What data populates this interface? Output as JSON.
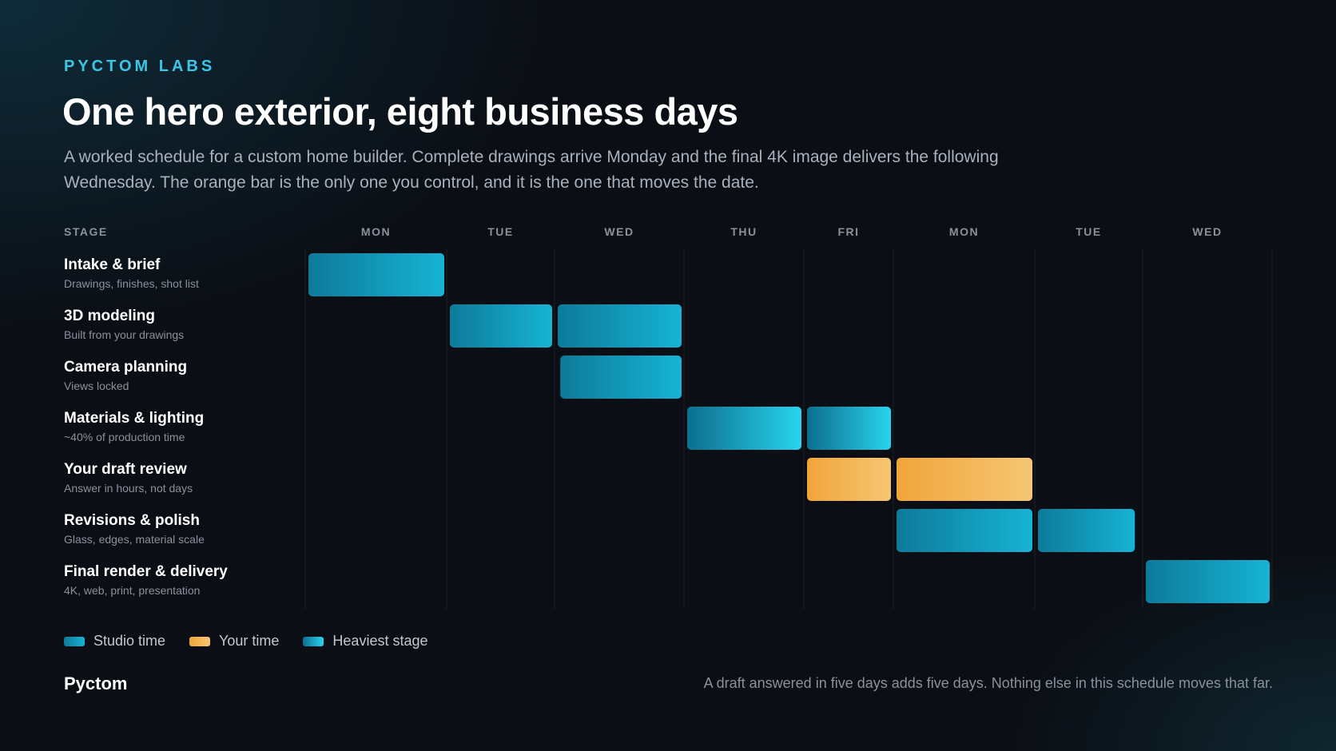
{
  "header": {
    "kicker": "PYCTOM LABS",
    "title": "One hero exterior, eight business days",
    "intro": "A worked schedule for a custom home builder. Complete drawings arrive Monday and the final 4K image delivers the following Wednesday. The orange bar is the only one you control, and it is the one that moves the date."
  },
  "colors": {
    "studio": [
      "#0e7a9a",
      "#16b4d4"
    ],
    "your": [
      "#f0a53a",
      "#f6c673"
    ],
    "heavy": [
      "#0c6f8e",
      "#28d4ee"
    ],
    "accent": "#3cc6e6",
    "background": "#0b0e14"
  },
  "chart_data": {
    "type": "gantt",
    "stage_header": "STAGE",
    "days": [
      "MON",
      "TUE",
      "WED",
      "THU",
      "FRI",
      "MON",
      "TUE",
      "WED"
    ],
    "stages": [
      {
        "name": "Intake & brief",
        "sub": "Drawings, finishes, shot list",
        "kind": "studio",
        "segments": [
          [
            0,
            1
          ]
        ]
      },
      {
        "name": "3D modeling",
        "sub": "Built from your drawings",
        "kind": "studio",
        "segments": [
          [
            1,
            2
          ],
          [
            2,
            3
          ]
        ]
      },
      {
        "name": "Camera planning",
        "sub": "Views locked",
        "kind": "studio",
        "segments": [
          [
            2.02,
            3
          ]
        ]
      },
      {
        "name": "Materials & lighting",
        "sub": "~40% of production time",
        "kind": "heavy",
        "segments": [
          [
            3,
            4
          ],
          [
            4,
            5
          ]
        ]
      },
      {
        "name": "Your draft review",
        "sub": "Answer in hours, not days",
        "kind": "your",
        "segments": [
          [
            4,
            5
          ],
          [
            5,
            6
          ]
        ]
      },
      {
        "name": "Revisions & polish",
        "sub": "Glass, edges, material scale",
        "kind": "studio",
        "segments": [
          [
            5,
            6
          ],
          [
            6,
            6.95
          ]
        ]
      },
      {
        "name": "Final render & delivery",
        "sub": "4K, web, print, presentation",
        "kind": "studio",
        "segments": [
          [
            7,
            8
          ]
        ]
      }
    ],
    "legend": [
      {
        "kind": "studio",
        "label": "Studio time"
      },
      {
        "kind": "your",
        "label": "Your time"
      },
      {
        "kind": "heavy",
        "label": "Heaviest stage"
      }
    ]
  },
  "footer": {
    "brand": "Pyctom",
    "note": "A draft answered in five days adds five days. Nothing else in this schedule moves that far."
  }
}
